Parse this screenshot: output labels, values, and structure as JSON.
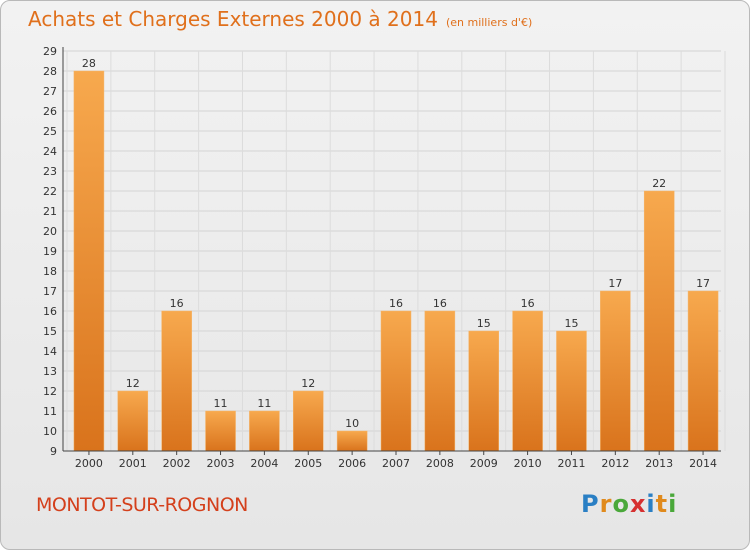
{
  "title": "Achats et Charges Externes 2000 à 2014",
  "subtitle": "(en milliers d'€)",
  "commune": "MONTOT-SUR-ROGNON",
  "logo": {
    "letters": [
      "P",
      "r",
      "o",
      "x",
      "i",
      "t",
      "i"
    ],
    "colors": [
      "#2a7fc4",
      "#e08a1c",
      "#4aa83a",
      "#d63030",
      "#2a7fc4",
      "#e08a1c",
      "#4aa83a"
    ]
  },
  "colors": {
    "bar_light": "#f7a94e",
    "bar_dark": "#d9731c",
    "accent": "#e0701c"
  },
  "chart_data": {
    "type": "bar",
    "title": "Achats et Charges Externes 2000 à 2014",
    "subtitle": "(en milliers d'€)",
    "categories": [
      "2000",
      "2001",
      "2002",
      "2003",
      "2004",
      "2005",
      "2006",
      "2007",
      "2008",
      "2009",
      "2010",
      "2011",
      "2012",
      "2013",
      "2014"
    ],
    "values": [
      28,
      12,
      16,
      11,
      11,
      12,
      10,
      16,
      16,
      15,
      16,
      15,
      17,
      22,
      17
    ],
    "ylim": [
      9,
      29
    ],
    "yticks": [
      9,
      10,
      11,
      12,
      13,
      14,
      15,
      16,
      17,
      18,
      19,
      20,
      21,
      22,
      23,
      24,
      25,
      26,
      27,
      28,
      29
    ],
    "grid": true,
    "xlabel": "",
    "ylabel": ""
  }
}
